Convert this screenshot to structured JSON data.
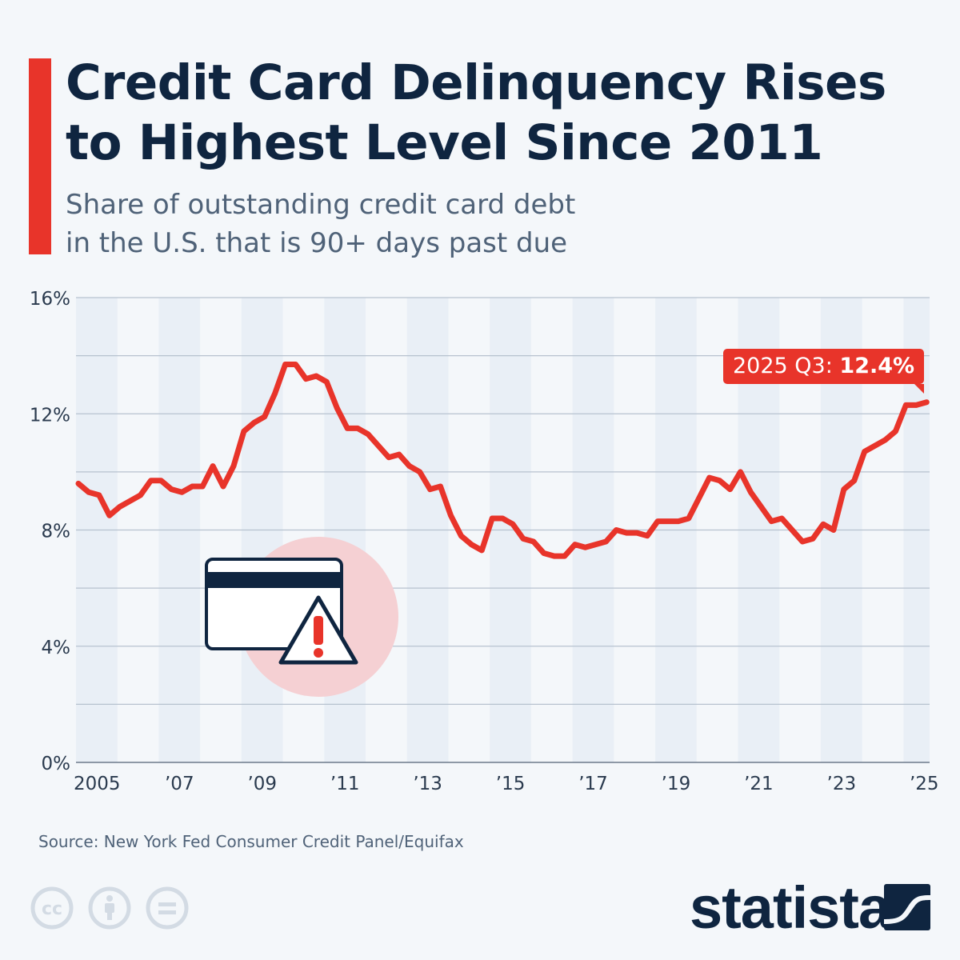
{
  "header": {
    "title_line1": "Credit Card Delinquency Rises",
    "title_line2": "to Highest Level Since 2011",
    "subtitle_line1": "Share of outstanding credit card debt",
    "subtitle_line2": "in the U.S. that is 90+ days past due"
  },
  "colors": {
    "accent": "#e8342a",
    "navy": "#0f2540",
    "band": "#e9eff6",
    "background": "#f4f7fa"
  },
  "chart_data": {
    "type": "line",
    "title": "Credit Card Delinquency Rises to Highest Level Since 2011",
    "subtitle": "Share of outstanding credit card debt in the U.S. that is 90+ days past due",
    "ylim": [
      0,
      16
    ],
    "yticks": [
      {
        "v": 0,
        "label": "0%"
      },
      {
        "v": 4,
        "label": "4%"
      },
      {
        "v": 8,
        "label": "8%"
      },
      {
        "v": 12,
        "label": "12%"
      },
      {
        "v": 16,
        "label": "16%"
      }
    ],
    "gridlines_every": 2,
    "xticks": [
      {
        "year": 2005,
        "label": "2005"
      },
      {
        "year": 2007,
        "label": "’07"
      },
      {
        "year": 2009,
        "label": "’09"
      },
      {
        "year": 2011,
        "label": "’11"
      },
      {
        "year": 2013,
        "label": "’13"
      },
      {
        "year": 2015,
        "label": "’15"
      },
      {
        "year": 2017,
        "label": "’17"
      },
      {
        "year": 2019,
        "label": "’19"
      },
      {
        "year": 2021,
        "label": "’21"
      },
      {
        "year": 2023,
        "label": "’23"
      },
      {
        "year": 2025,
        "label": "’25"
      }
    ],
    "x_start": "2005 Q1",
    "x_end": "2025 Q3",
    "frequency": "quarterly",
    "grid": true,
    "alternating_year_bands": true,
    "series": [
      {
        "values": [
          9.6,
          9.3,
          9.2,
          8.5,
          8.8,
          9.0,
          9.2,
          9.7,
          9.7,
          9.4,
          9.3,
          9.5,
          9.5,
          10.2,
          9.5,
          10.2,
          11.4,
          11.7,
          11.9,
          12.7,
          13.7,
          13.7,
          13.2,
          13.3,
          13.1,
          12.2,
          11.5,
          11.5,
          11.3,
          10.9,
          10.5,
          10.6,
          10.2,
          10.0,
          9.4,
          9.5,
          8.5,
          7.8,
          7.5,
          7.3,
          8.4,
          8.4,
          8.2,
          7.7,
          7.6,
          7.2,
          7.1,
          7.1,
          7.5,
          7.4,
          7.5,
          7.6,
          8.0,
          7.9,
          7.9,
          7.8,
          8.3,
          8.3,
          8.3,
          8.4,
          9.1,
          9.8,
          9.7,
          9.4,
          10.0,
          9.3,
          8.8,
          8.3,
          8.4,
          8.0,
          7.6,
          7.7,
          8.2,
          8.0,
          9.4,
          9.7,
          10.7,
          10.9,
          11.1,
          11.4,
          12.3,
          12.3,
          12.4
        ]
      }
    ],
    "annotation": {
      "label": "2025 Q3: ",
      "value": "12.4%"
    }
  },
  "footer": {
    "source": "Source: New York Fed Consumer Credit Panel/Equifax",
    "license_icons": [
      "cc-icon",
      "attribution-icon",
      "no-derivatives-icon"
    ],
    "logo": "statista"
  }
}
